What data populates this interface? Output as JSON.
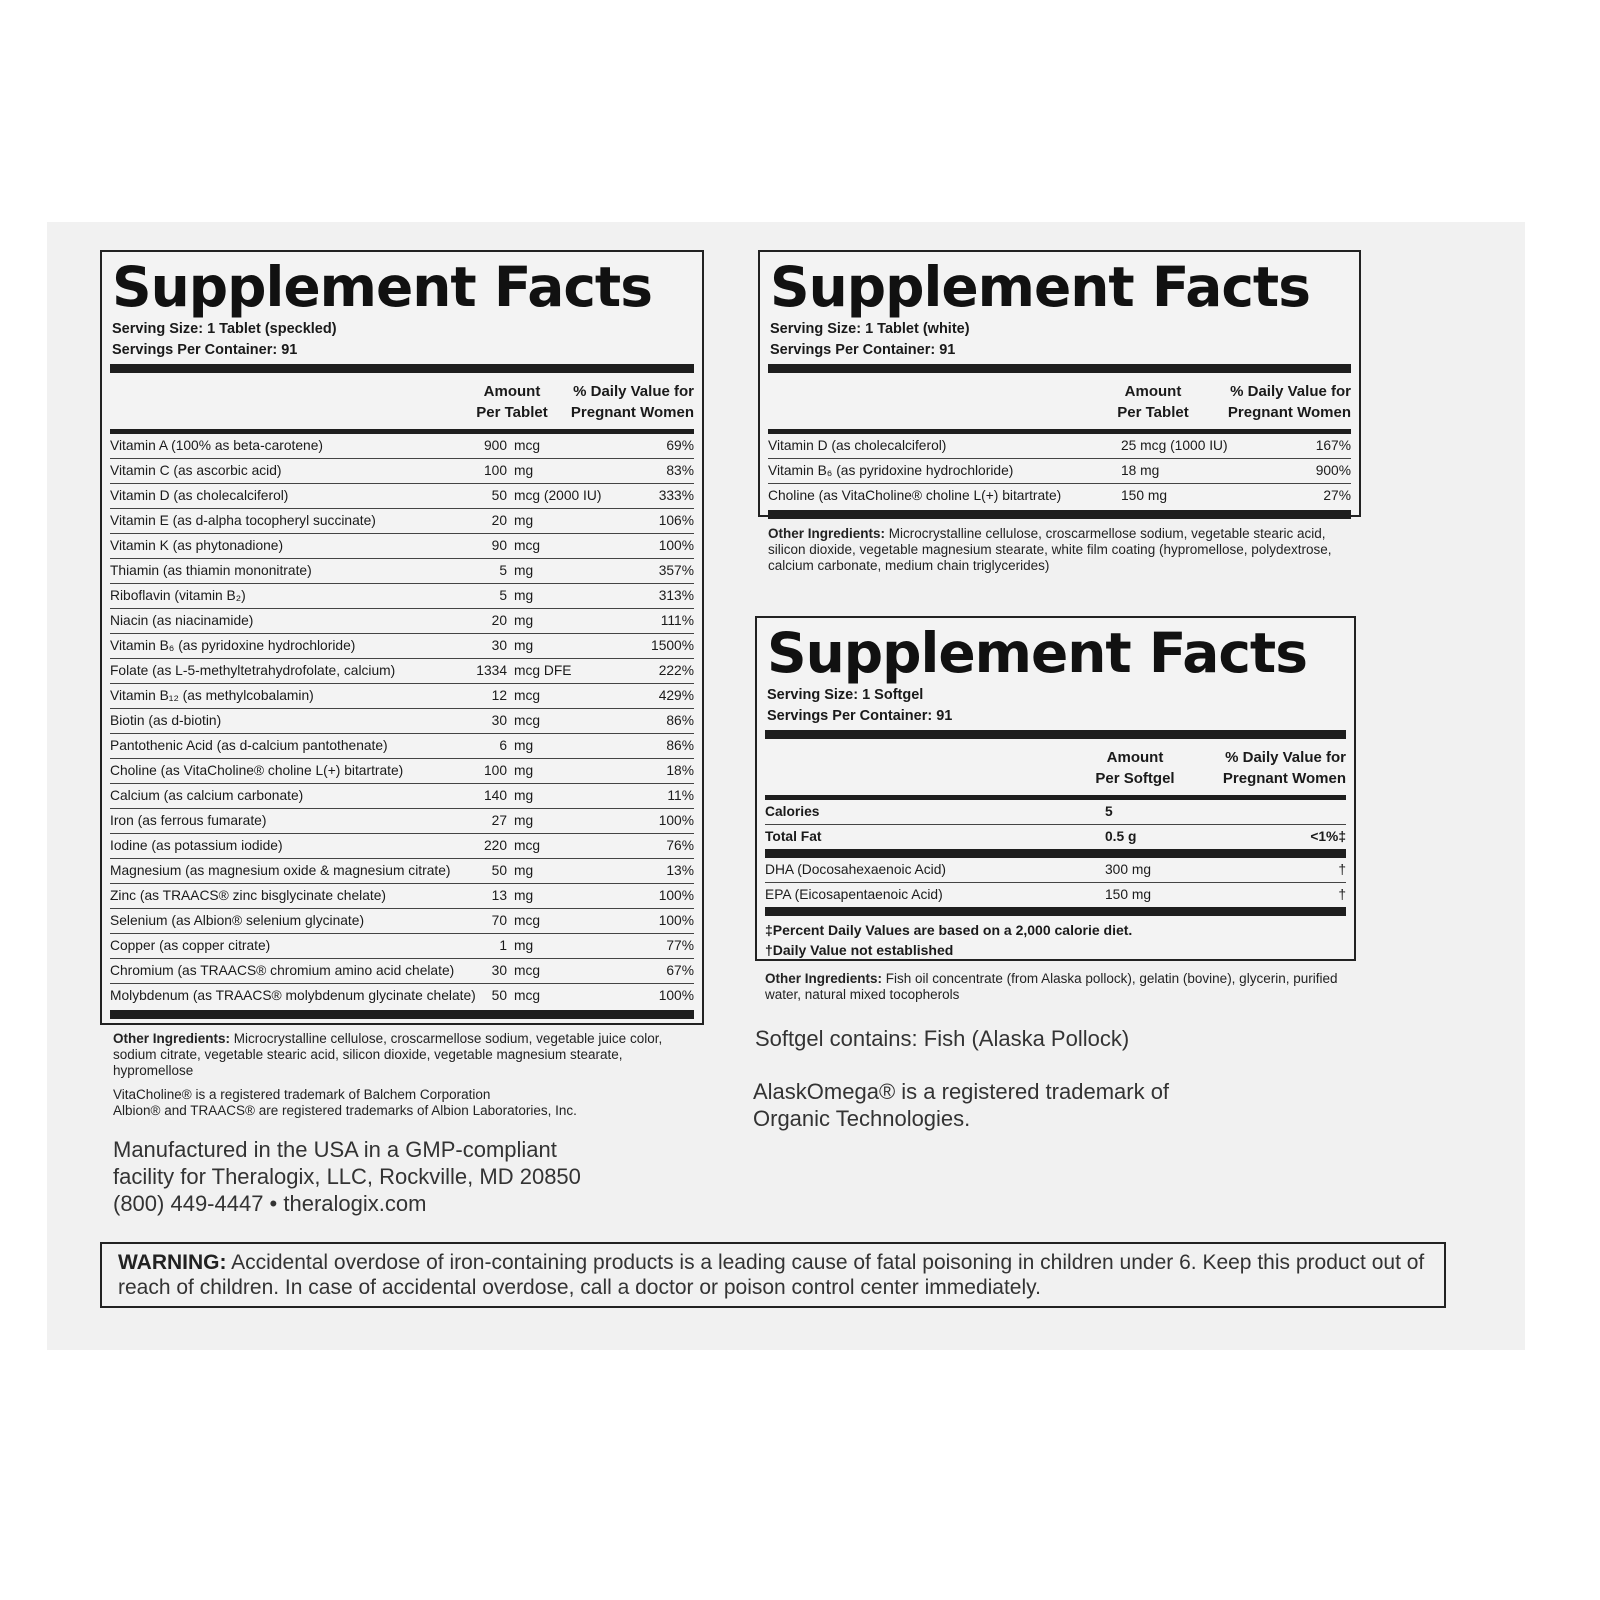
{
  "common": {
    "title": "Supplement Facts",
    "dv_header_1": "% Daily Value for",
    "dv_header_2": "Pregnant Women",
    "amount_header": "Amount",
    "other_label": "Other Ingredients:"
  },
  "speckled": {
    "serving_size": "Serving Size: 1 Tablet (speckled)",
    "servings_per_container": "Servings Per Container: 91",
    "amount_header_2": "Per Tablet",
    "rows": [
      {
        "name": "Vitamin A (100% as beta-carotene)",
        "num": "900",
        "unit": "mcg",
        "dv": "69%"
      },
      {
        "name": "Vitamin C (as ascorbic acid)",
        "num": "100",
        "unit": "mg",
        "dv": "83%"
      },
      {
        "name": "Vitamin D (as cholecalciferol)",
        "num": "50",
        "unit": "mcg (2000 IU)",
        "dv": "333%"
      },
      {
        "name": "Vitamin E (as d-alpha tocopheryl succinate)",
        "num": "20",
        "unit": "mg",
        "dv": "106%"
      },
      {
        "name": "Vitamin K (as phytonadione)",
        "num": "90",
        "unit": "mcg",
        "dv": "100%"
      },
      {
        "name": "Thiamin (as thiamin mononitrate)",
        "num": "5",
        "unit": "mg",
        "dv": "357%"
      },
      {
        "name": "Riboflavin (vitamin B₂)",
        "num": "5",
        "unit": "mg",
        "dv": "313%"
      },
      {
        "name": "Niacin (as niacinamide)",
        "num": "20",
        "unit": "mg",
        "dv": "111%"
      },
      {
        "name": "Vitamin B₆ (as pyridoxine hydrochloride)",
        "num": "30",
        "unit": "mg",
        "dv": "1500%"
      },
      {
        "name": "Folate (as L-5-methyltetrahydrofolate, calcium)",
        "num": "1334",
        "unit": "mcg DFE",
        "dv": "222%"
      },
      {
        "name": "Vitamin B₁₂ (as methylcobalamin)",
        "num": "12",
        "unit": "mcg",
        "dv": "429%"
      },
      {
        "name": "Biotin (as d-biotin)",
        "num": "30",
        "unit": "mcg",
        "dv": "86%"
      },
      {
        "name": "Pantothenic Acid (as d-calcium pantothenate)",
        "num": "6",
        "unit": "mg",
        "dv": "86%"
      },
      {
        "name": "Choline (as VitaCholine® choline L(+) bitartrate)",
        "num": "100",
        "unit": "mg",
        "dv": "18%"
      },
      {
        "name": "Calcium (as calcium carbonate)",
        "num": "140",
        "unit": "mg",
        "dv": "11%"
      },
      {
        "name": "Iron (as ferrous fumarate)",
        "num": "27",
        "unit": "mg",
        "dv": "100%"
      },
      {
        "name": "Iodine (as potassium iodide)",
        "num": "220",
        "unit": "mcg",
        "dv": "76%"
      },
      {
        "name": "Magnesium (as magnesium oxide & magnesium citrate)",
        "num": "50",
        "unit": "mg",
        "dv": "13%"
      },
      {
        "name": "Zinc (as TRAACS® zinc bisglycinate chelate)",
        "num": "13",
        "unit": "mg",
        "dv": "100%"
      },
      {
        "name": "Selenium (as Albion® selenium glycinate)",
        "num": "70",
        "unit": "mcg",
        "dv": "100%"
      },
      {
        "name": "Copper (as copper citrate)",
        "num": "1",
        "unit": "mg",
        "dv": "77%"
      },
      {
        "name": "Chromium (as TRAACS® chromium amino acid chelate)",
        "num": "30",
        "unit": "mcg",
        "dv": "67%"
      },
      {
        "name": "Molybdenum (as TRAACS® molybdenum glycinate chelate)",
        "num": "50",
        "unit": "mcg",
        "dv": "100%"
      }
    ],
    "other_ingredients": "Microcrystalline cellulose, croscarmellose sodium, vegetable juice color, sodium citrate, vegetable stearic acid, silicon dioxide, vegetable magnesium stearate, hypromellose",
    "trademark_1": "VitaCholine® is a registered trademark of Balchem Corporation",
    "trademark_2": "Albion® and TRAACS® are registered trademarks of Albion Laboratories, Inc.",
    "manufacturer": [
      "Manufactured in the USA in a GMP-compliant",
      "facility for Theralogix, LLC, Rockville, MD 20850",
      "(800) 449-4447 • theralogix.com"
    ]
  },
  "white": {
    "serving_size": "Serving Size: 1 Tablet (white)",
    "servings_per_container": "Servings Per Container: 91",
    "amount_header_2": "Per Tablet",
    "rows": [
      {
        "name": "Vitamin D (as cholecalciferol)",
        "amount": "25 mcg (1000 IU)",
        "dv": "167%"
      },
      {
        "name": "Vitamin B₆ (as pyridoxine hydrochloride)",
        "amount": "18 mg",
        "dv": "900%"
      },
      {
        "name": "Choline (as VitaCholine® choline L(+) bitartrate)",
        "amount": "150 mg",
        "dv": "27%"
      }
    ],
    "other_ingredients": "Microcrystalline cellulose, croscarmellose sodium, vegetable stearic acid, silicon dioxide, vegetable magnesium stearate, white film coating (hypromellose, polydextrose, calcium carbonate, medium chain triglycerides)"
  },
  "softgel": {
    "serving_size": "Serving Size: 1 Softgel",
    "servings_per_container": "Servings Per Container: 91",
    "amount_header_2": "Per Softgel",
    "rows_top": [
      {
        "name": "Calories",
        "amount": "5",
        "dv": ""
      },
      {
        "name": "Total Fat",
        "amount": "0.5 g",
        "dv": "<1%‡"
      }
    ],
    "rows": [
      {
        "name": "DHA (Docosahexaenoic Acid)",
        "amount": "300 mg",
        "dv": "†"
      },
      {
        "name": "EPA (Eicosapentaenoic Acid)",
        "amount": "150 mg",
        "dv": "†"
      }
    ],
    "footnote_1": "‡Percent Daily Values are based on a 2,000 calorie diet.",
    "footnote_2": "†Daily Value not established",
    "other_ingredients": "Fish oil concentrate (from Alaska pollock), gelatin (bovine), glycerin, purified water, natural mixed tocopherols",
    "contains": "Softgel contains: Fish (Alaska Pollock)",
    "trademark": [
      "AlaskOmega® is a registered trademark of",
      "Organic Technologies."
    ]
  },
  "warning": {
    "label": "WARNING:",
    "text": " Accidental overdose of iron-containing products is a leading cause of fatal poisoning in children under 6. Keep this product out of reach of children. In case of accidental overdose, call a doctor or poison control center immediately."
  }
}
